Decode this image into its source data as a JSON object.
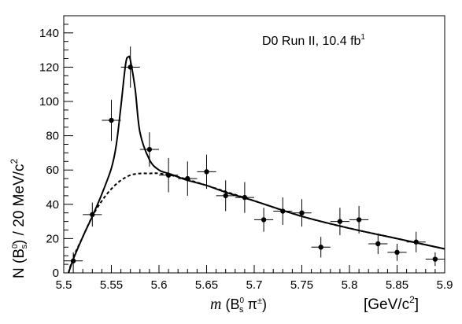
{
  "chart_data": {
    "type": "scatter",
    "annotation": {
      "prefix": "D0 Run II, 10.4 fb",
      "sup": "1"
    },
    "xlabel": {
      "m": "m",
      "open": " (B",
      "sup": "0",
      "sub": "s",
      "mid": " π",
      "pm": "±",
      "close": ")"
    },
    "xunit": {
      "main": "[GeV/c",
      "sup": "2",
      "close": "]"
    },
    "ylabel": {
      "a": "N (B",
      "sup": "0",
      "sub": "s",
      "b": ") / 20 MeV/c",
      "sup2": "2"
    },
    "xlim": [
      5.5,
      5.9
    ],
    "ylim": [
      0,
      150
    ],
    "xticks": [
      5.5,
      5.55,
      5.6,
      5.65,
      5.7,
      5.75,
      5.8,
      5.85,
      5.9
    ],
    "xtick_labels": [
      "5.5",
      "5.55",
      "5.6",
      "5.65",
      "5.7",
      "5.75",
      "5.8",
      "5.85",
      "5.9"
    ],
    "yticks": [
      0,
      20,
      40,
      60,
      80,
      100,
      120,
      140
    ],
    "ytick_labels": [
      "0",
      "20",
      "40",
      "60",
      "80",
      "100",
      "120",
      "140"
    ],
    "points": [
      {
        "x": 5.51,
        "y": 7,
        "yerr": 5
      },
      {
        "x": 5.53,
        "y": 34,
        "yerr": 7
      },
      {
        "x": 5.55,
        "y": 89,
        "yerr": 12
      },
      {
        "x": 5.57,
        "y": 120,
        "yerr": 12
      },
      {
        "x": 5.59,
        "y": 72,
        "yerr": 10
      },
      {
        "x": 5.61,
        "y": 57,
        "yerr": 10
      },
      {
        "x": 5.63,
        "y": 55,
        "yerr": 10
      },
      {
        "x": 5.65,
        "y": 59,
        "yerr": 10
      },
      {
        "x": 5.67,
        "y": 45,
        "yerr": 9
      },
      {
        "x": 5.69,
        "y": 44,
        "yerr": 9
      },
      {
        "x": 5.71,
        "y": 31,
        "yerr": 7
      },
      {
        "x": 5.73,
        "y": 36,
        "yerr": 8
      },
      {
        "x": 5.75,
        "y": 35,
        "yerr": 8
      },
      {
        "x": 5.77,
        "y": 15,
        "yerr": 6
      },
      {
        "x": 5.79,
        "y": 30,
        "yerr": 8
      },
      {
        "x": 5.81,
        "y": 31,
        "yerr": 8
      },
      {
        "x": 5.83,
        "y": 17,
        "yerr": 6
      },
      {
        "x": 5.85,
        "y": 12,
        "yerr": 5
      },
      {
        "x": 5.87,
        "y": 18,
        "yerr": 6
      },
      {
        "x": 5.89,
        "y": 8,
        "yerr": 4
      }
    ],
    "x_half_bin": 0.01,
    "series": [
      {
        "style": "solid",
        "x": [
          5.505,
          5.51,
          5.52,
          5.53,
          5.54,
          5.55,
          5.555,
          5.56,
          5.565,
          5.568,
          5.57,
          5.575,
          5.58,
          5.59,
          5.6,
          5.61,
          5.62,
          5.63,
          5.65,
          5.67,
          5.7,
          5.75,
          5.8,
          5.85,
          5.9
        ],
        "y": [
          0,
          8,
          21,
          33,
          46,
          61,
          74,
          97,
          122,
          126,
          124,
          107,
          82,
          66,
          60,
          58,
          56,
          54,
          51,
          47,
          42,
          33,
          26,
          20,
          14
        ]
      },
      {
        "style": "dashed",
        "x": [
          5.505,
          5.51,
          5.52,
          5.53,
          5.54,
          5.55,
          5.56,
          5.57,
          5.58,
          5.59,
          5.6,
          5.62,
          5.65,
          5.7,
          5.75,
          5.8,
          5.85,
          5.9
        ],
        "y": [
          0,
          9,
          21,
          33,
          42,
          49,
          54,
          57,
          58,
          58,
          58,
          56,
          51,
          42,
          33,
          26,
          20,
          14
        ]
      }
    ],
    "grid": false
  }
}
